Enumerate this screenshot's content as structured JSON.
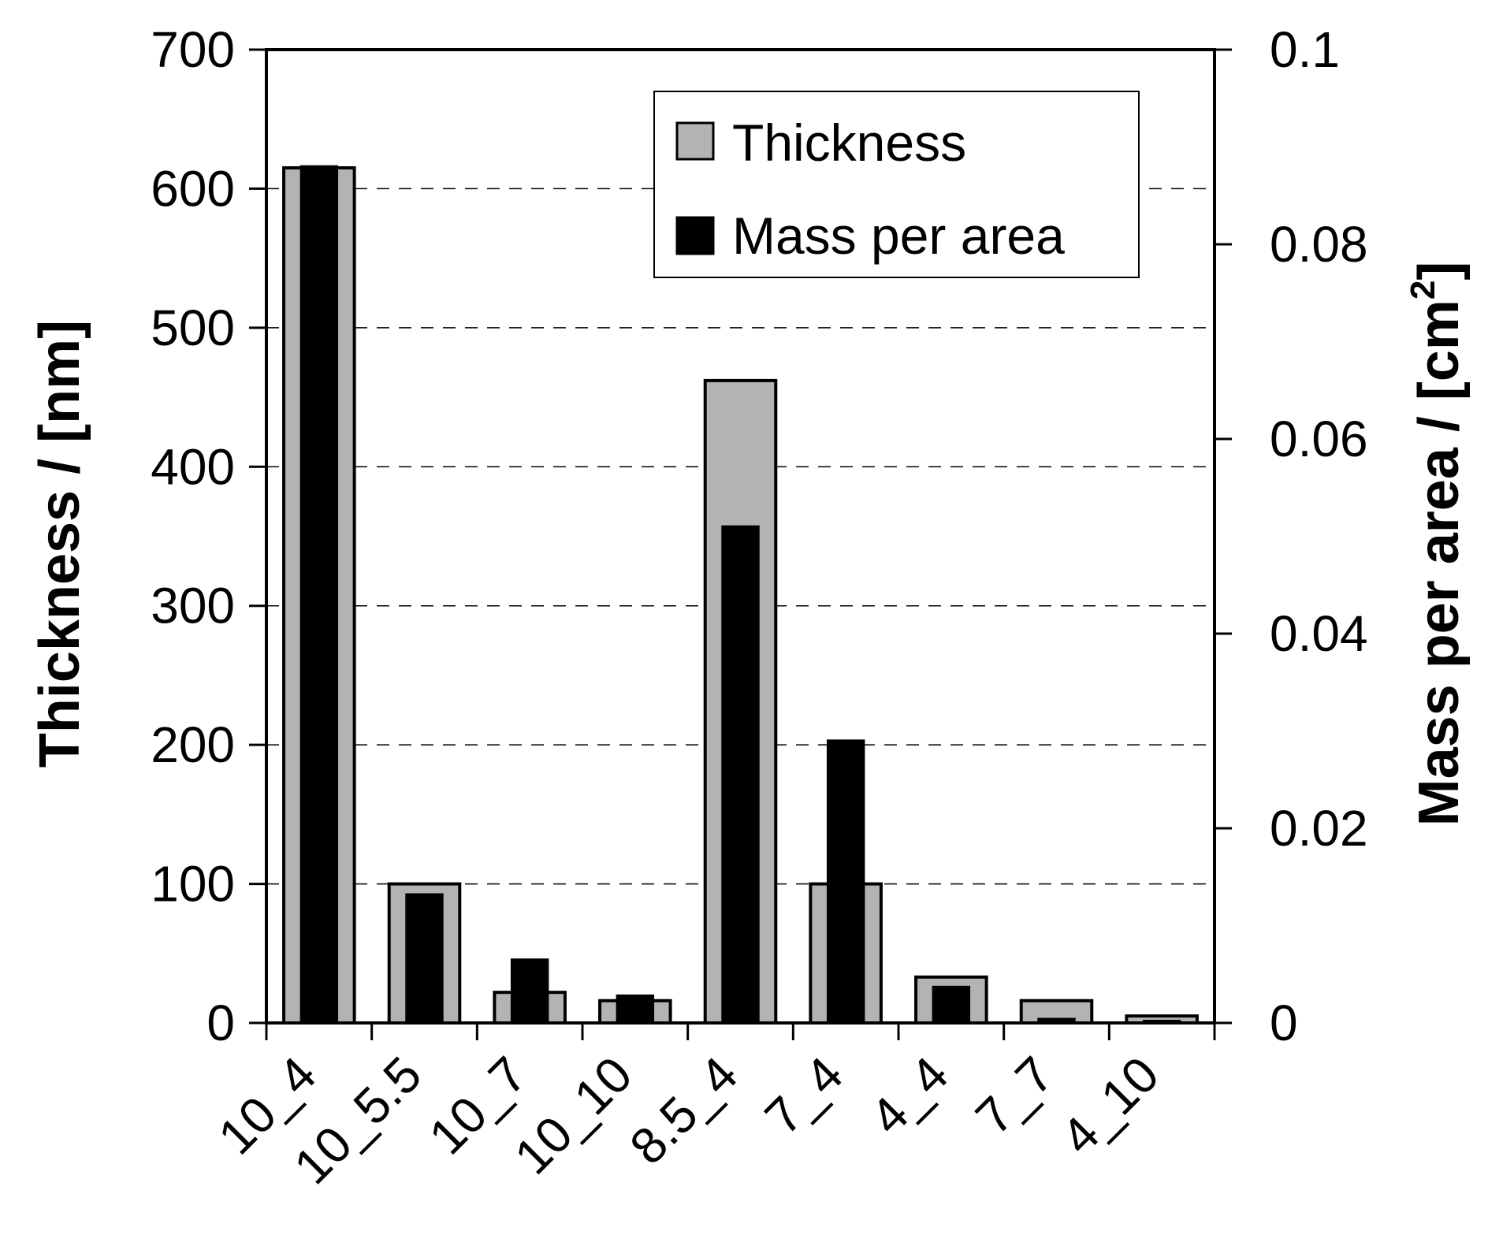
{
  "chart_data": {
    "type": "bar",
    "categories": [
      "10_4",
      "10_5.5",
      "10_7",
      "10_10",
      "8.5_4",
      "7_4",
      "4_4",
      "7_7",
      "4_10"
    ],
    "series": [
      {
        "name": "Thickness",
        "axis": "left",
        "color": "#b3b3b3",
        "values": [
          615,
          100,
          22,
          16,
          462,
          100,
          33,
          16,
          5
        ]
      },
      {
        "name": "Mass per area",
        "axis": "right",
        "color": "#000000",
        "values": [
          0.088,
          0.0132,
          0.0065,
          0.0028,
          0.051,
          0.029,
          0.0037,
          0.0004,
          0.0002
        ]
      }
    ],
    "ylabel_left": {
      "text": "Thickness / [nm]"
    },
    "ylabel_right": {
      "text": "Mass per area / [cm",
      "sup": "2",
      "suffix": "]"
    },
    "ylim_left": [
      0,
      700
    ],
    "yticks_left": [
      "0",
      "100",
      "200",
      "300",
      "400",
      "500",
      "600",
      "700"
    ],
    "ylim_right": [
      0,
      0.1
    ],
    "yticks_right": [
      "0",
      "0.02",
      "0.04",
      "0.06",
      "0.08",
      "0.1"
    ],
    "grid": "dashed horizontal at left-axis ticks",
    "legend": {
      "position": "top-right",
      "entries": [
        "Thickness",
        "Mass per area"
      ]
    }
  }
}
